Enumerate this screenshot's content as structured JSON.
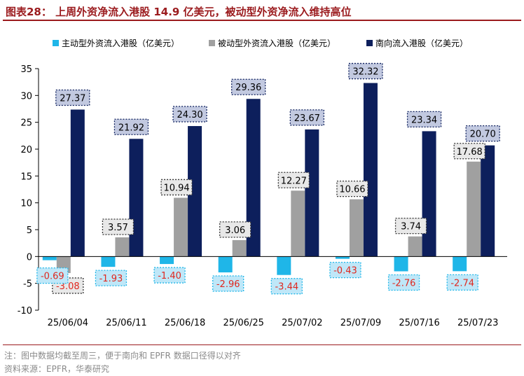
{
  "title": "图表28：  上周外资净流入港股 14.9 亿美元，被动型外资净流入维持高位",
  "notes": {
    "note": "注：图中数据均截至周三，便于南向和 EPFR 数据口径得以对齐",
    "source": "资料来源：EPFR，华泰研究"
  },
  "chart_data": {
    "type": "bar",
    "categories": [
      "25/06/04",
      "25/06/11",
      "25/06/18",
      "25/06/25",
      "25/07/02",
      "25/07/09",
      "25/07/16",
      "25/07/23"
    ],
    "series": [
      {
        "name": "主动型外资流入港股（亿美元）",
        "color": "#1fb6e8",
        "values": [
          -0.69,
          -1.93,
          -1.4,
          -2.96,
          -3.44,
          -0.43,
          -2.76,
          -2.74
        ],
        "labels": [
          "-0.69",
          "-1.93",
          "-1.40",
          "-2.96",
          "-3.44",
          "-0.43",
          "-2.76",
          "-2.74"
        ]
      },
      {
        "name": "被动型外资流入港股（亿美元）",
        "color": "#a0a0a0",
        "values": [
          -3.08,
          3.57,
          10.94,
          3.06,
          12.27,
          10.66,
          3.74,
          17.68
        ],
        "labels": [
          "-3.08",
          "3.57",
          "10.94",
          "3.06",
          "12.27",
          "10.66",
          "3.74",
          "17.68"
        ]
      },
      {
        "name": "南向流入港股（亿美元）",
        "color": "#0d1f5c",
        "values": [
          27.37,
          21.92,
          24.3,
          29.36,
          23.67,
          32.32,
          23.34,
          20.7
        ],
        "labels": [
          "27.37",
          "21.92",
          "24.30",
          "29.36",
          "23.67",
          "32.32",
          "23.34",
          "20.70"
        ]
      }
    ],
    "ylim": [
      -10,
      35
    ],
    "yticks": [
      "35",
      "30",
      "25",
      "20",
      "15",
      "10",
      "5",
      "0",
      "-5",
      "-10"
    ],
    "ytick_values": [
      35,
      30,
      25,
      20,
      15,
      10,
      5,
      0,
      -5,
      -10
    ],
    "legend_position": "top",
    "grid": false,
    "label_styles": {
      "active": {
        "fill": "#bfe7f8",
        "border": "#1fb6e8",
        "text": "#e0271e"
      },
      "passive": {
        "fill": "#e8e8e8",
        "border": "#333333",
        "text": "#000000",
        "negative_text": "#e0271e"
      },
      "southbound": {
        "fill": "#c2c9e0",
        "border": "#0d1f5c",
        "text": "#000000"
      }
    }
  }
}
